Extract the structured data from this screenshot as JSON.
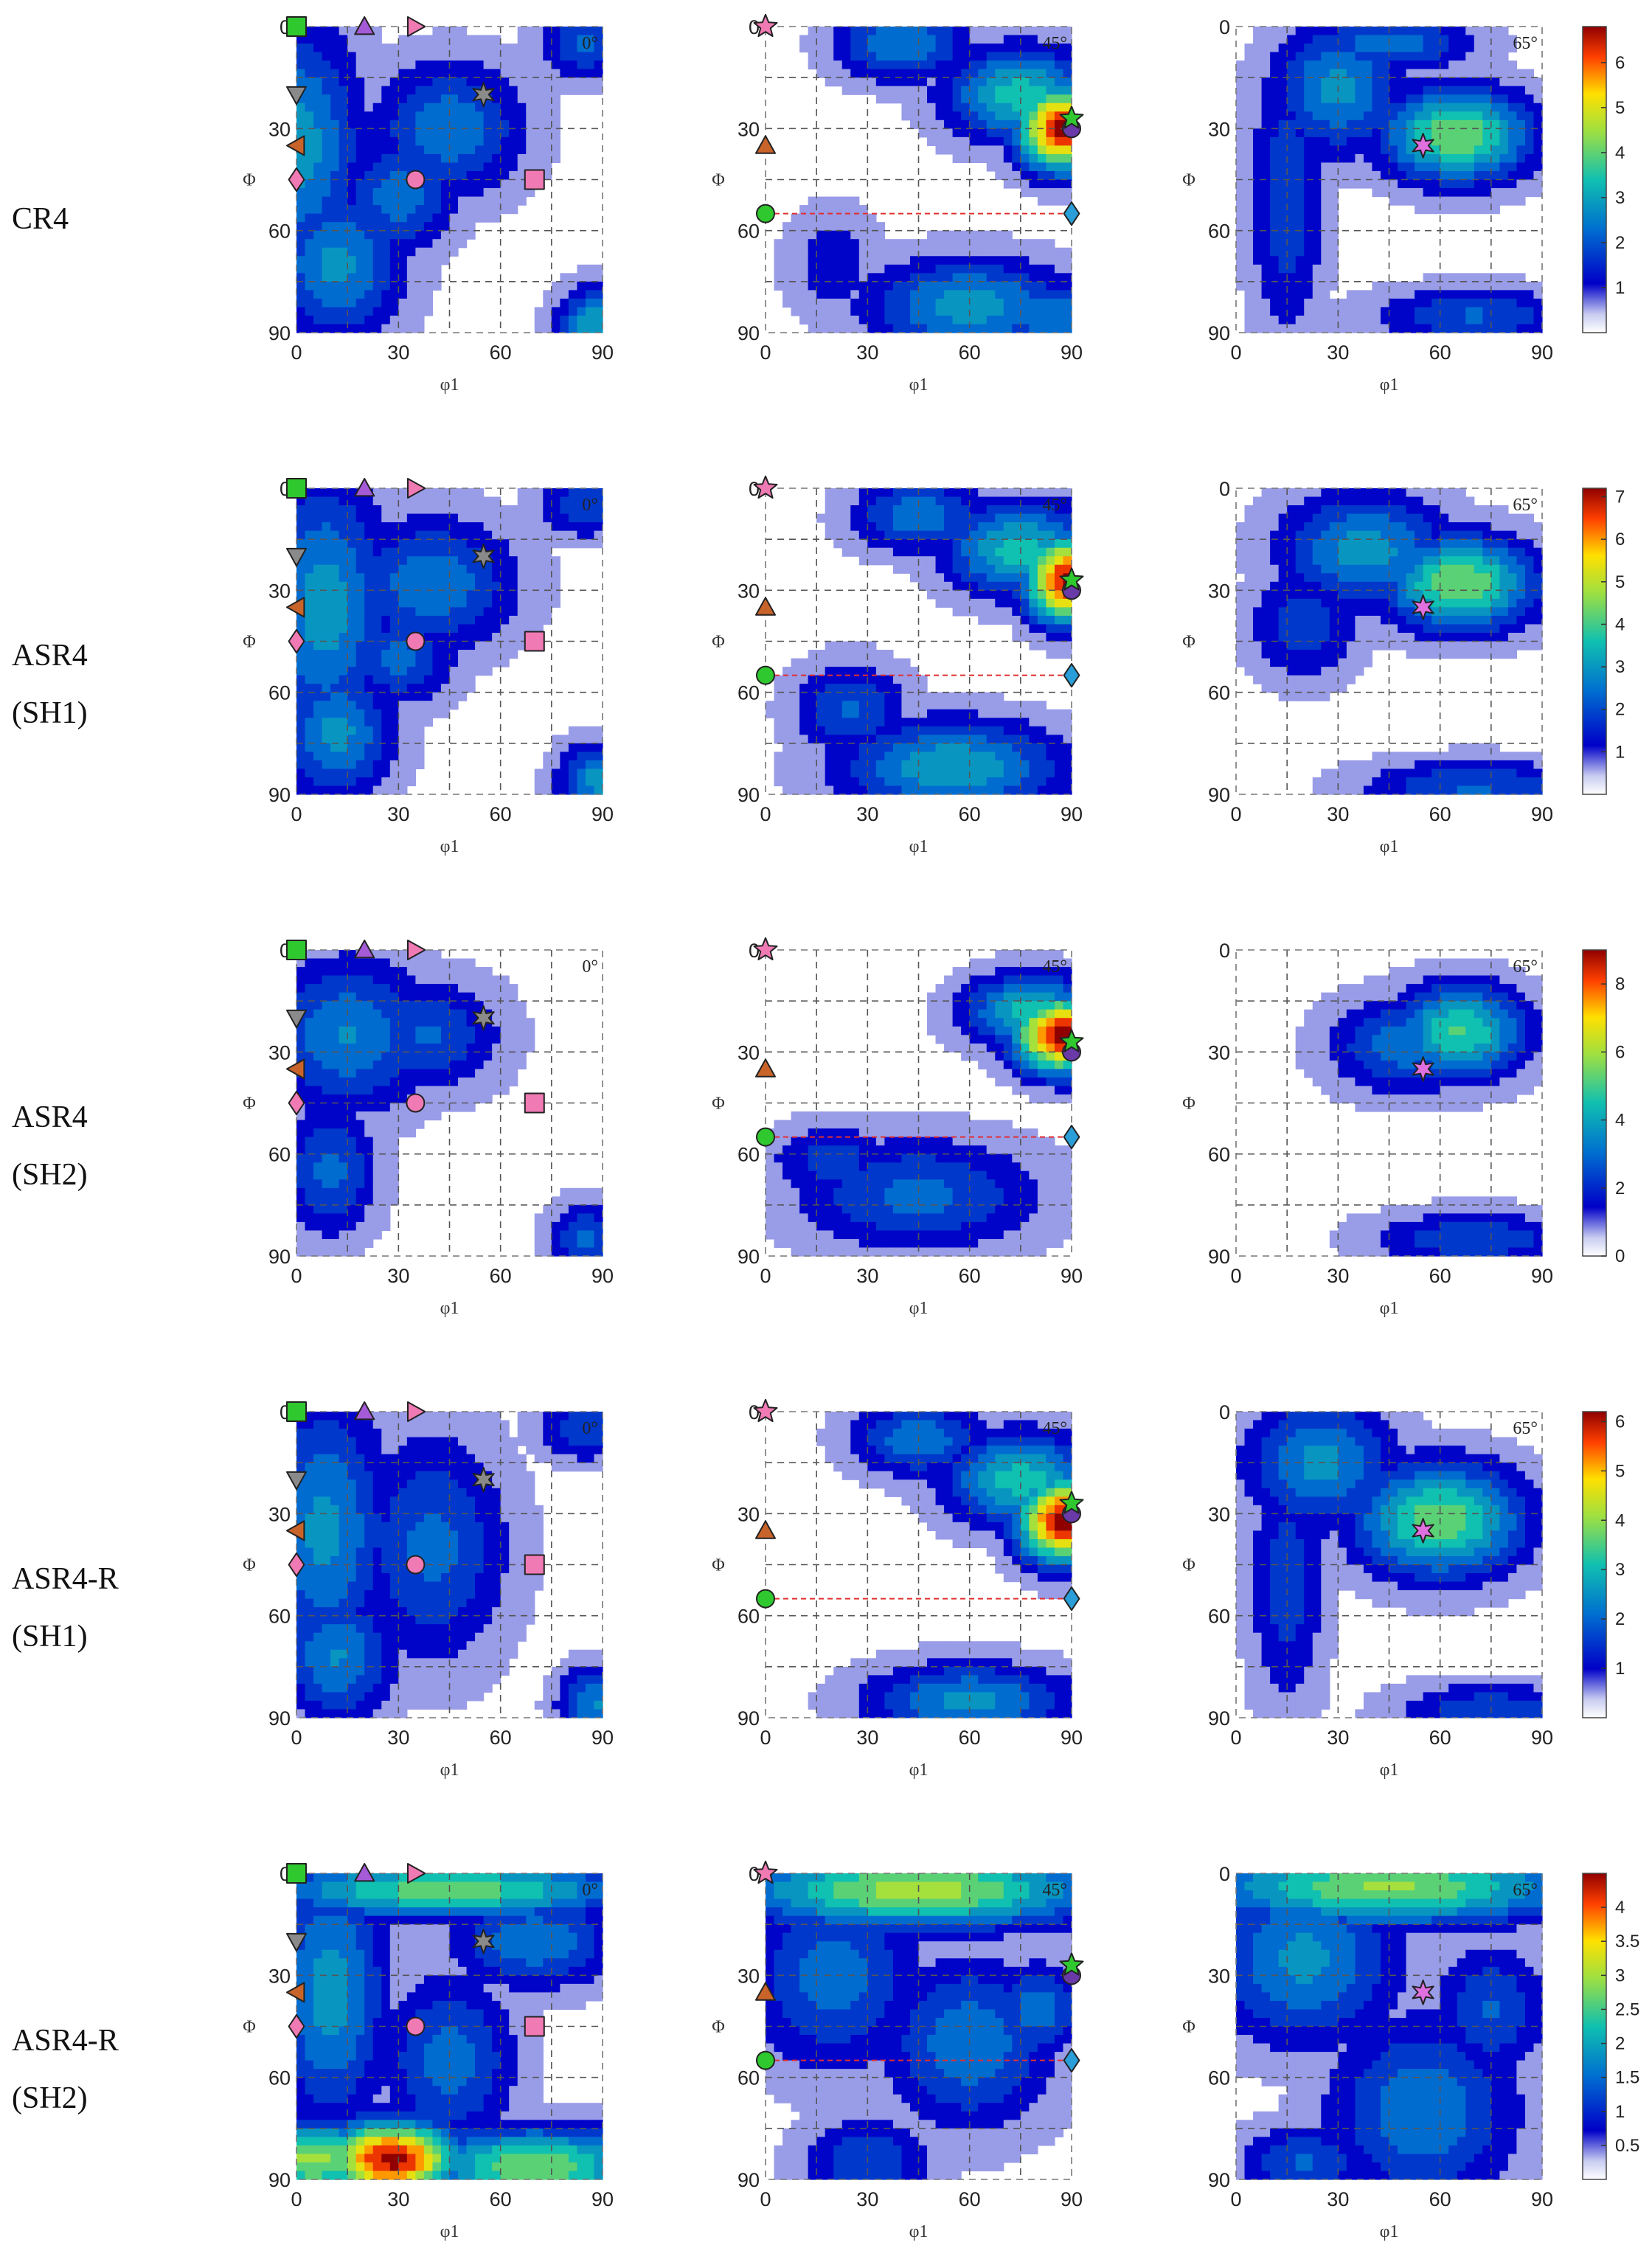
{
  "figure": {
    "rows": [
      {
        "label_lines": [
          "CR4"
        ],
        "colorbar": {
          "max": 6.8,
          "ticks": [
            "1",
            "2",
            "3",
            "4",
            "5",
            "6"
          ]
        }
      },
      {
        "label_lines": [
          "ASR4",
          "(SH1)"
        ],
        "colorbar": {
          "max": 7.2,
          "ticks": [
            "1",
            "2",
            "3",
            "4",
            "5",
            "6",
            "7"
          ]
        }
      },
      {
        "label_lines": [
          "ASR4",
          "(SH2)"
        ],
        "colorbar": {
          "max": 9.0,
          "ticks": [
            "0",
            "2",
            "4",
            "6",
            "8"
          ]
        }
      },
      {
        "label_lines": [
          "ASR4-R",
          "(SH1)"
        ],
        "colorbar": {
          "max": 6.2,
          "ticks": [
            "1",
            "2",
            "3",
            "4",
            "5",
            "6"
          ]
        }
      },
      {
        "label_lines": [
          "ASR4-R",
          "(SH2)"
        ],
        "colorbar": {
          "max": 4.5,
          "ticks": [
            "0.5",
            "1",
            "1.5",
            "2",
            "2.5",
            "3",
            "3.5",
            "4"
          ]
        }
      }
    ],
    "sections": [
      "0°",
      "45°",
      "65°"
    ],
    "x_axis_label": "φ1",
    "y_axis_label": "Φ",
    "x_ticks": [
      "0",
      "30",
      "60",
      "90"
    ],
    "y_ticks": [
      "0",
      "30",
      "60",
      "90"
    ]
  },
  "chart_data": {
    "type": "heatmap",
    "description_units": "Euler angles in degrees; intensity in multiples of random distribution",
    "axes": {
      "x": "φ1",
      "y": "Φ",
      "xlim": [
        0,
        90
      ],
      "ylim": [
        0,
        90
      ]
    },
    "markers": {
      "0°": [
        {
          "shape": "square",
          "color": "#2fc82f",
          "phi1": 0,
          "Phi": 0
        },
        {
          "shape": "triangle-up",
          "color": "#a55ad8",
          "phi1": 20,
          "Phi": 0
        },
        {
          "shape": "triangle-right",
          "color": "#f07ab4",
          "phi1": 35,
          "Phi": 0
        },
        {
          "shape": "triangle-down",
          "color": "#8a8a8a",
          "phi1": 0,
          "Phi": 20
        },
        {
          "shape": "triangle-left",
          "color": "#c8642a",
          "phi1": 0,
          "Phi": 35
        },
        {
          "shape": "diamond",
          "color": "#f07ab4",
          "phi1": 0,
          "Phi": 45
        },
        {
          "shape": "circle",
          "color": "#f07ab4",
          "phi1": 35,
          "Phi": 45
        },
        {
          "shape": "square",
          "color": "#f07ab4",
          "phi1": 70,
          "Phi": 45
        },
        {
          "shape": "star6",
          "color": "#8a8a8a",
          "phi1": 55,
          "Phi": 20
        }
      ],
      "45°": [
        {
          "shape": "star5",
          "color": "#f07ab4",
          "phi1": 0,
          "Phi": 0
        },
        {
          "shape": "triangle-up",
          "color": "#c8642a",
          "phi1": 0,
          "Phi": 35
        },
        {
          "shape": "circle",
          "color": "#2fc82f",
          "phi1": 0,
          "Phi": 55
        },
        {
          "shape": "diamond",
          "color": "#2a9ed8",
          "phi1": 90,
          "Phi": 55
        },
        {
          "shape": "circle",
          "color": "#6a3aa8",
          "phi1": 90,
          "Phi": 30
        },
        {
          "shape": "star5",
          "color": "#2fc82f",
          "phi1": 90,
          "Phi": 27
        }
      ],
      "65°": [
        {
          "shape": "star6",
          "color": "#e070e0",
          "phi1": 55,
          "Phi": 35
        }
      ]
    },
    "reference_line": {
      "section": "45°",
      "Phi": 55,
      "from_phi1": 0,
      "to_phi1": 90,
      "color": "#e03030",
      "style": "dashed"
    },
    "peaks": [
      {
        "row": "CR4",
        "section": "45°",
        "phi1": 88,
        "Phi": 30,
        "value": 6.8
      },
      {
        "row": "ASR4 (SH1)",
        "section": "45°",
        "phi1": 88,
        "Phi": 27,
        "value": 7.2
      },
      {
        "row": "ASR4 (SH2)",
        "section": "45°",
        "phi1": 87,
        "Phi": 25,
        "value": 9.0
      },
      {
        "row": "ASR4-R (SH1)",
        "section": "45°",
        "phi1": 87,
        "Phi": 32,
        "value": 6.2
      },
      {
        "row": "ASR4-R (SH2)",
        "section": "0°",
        "phi1": 28,
        "Phi": 84,
        "value": 4.5
      }
    ]
  }
}
